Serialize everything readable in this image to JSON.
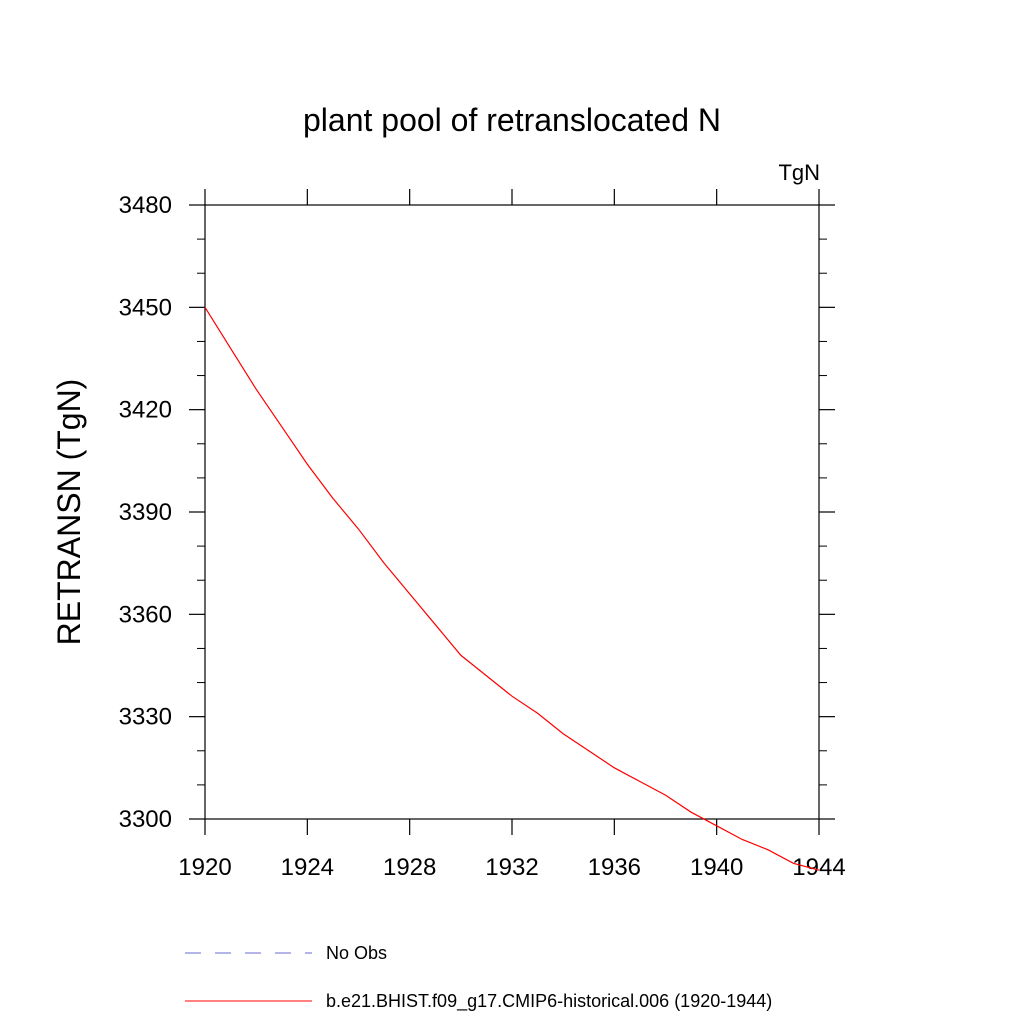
{
  "chart_data": {
    "type": "line",
    "title": "plant pool of retranslocated N",
    "units_label": "TgN",
    "ylabel": "RETRANSN  (TgN)",
    "xlabel": "",
    "xlim": [
      1920,
      1944
    ],
    "ylim": [
      3300,
      3480
    ],
    "x_ticks": [
      1920,
      1924,
      1928,
      1932,
      1936,
      1940,
      1944
    ],
    "y_ticks": [
      3300,
      3330,
      3360,
      3390,
      3420,
      3450,
      3480
    ],
    "x_minor_step": 1,
    "y_minor_step": 10,
    "grid": false,
    "legend_position": "bottom",
    "series": [
      {
        "name": "No Obs",
        "style": "dashed",
        "color": "#6a6ad0",
        "x": [],
        "y": []
      },
      {
        "name": "b.e21.BHIST.f09_g17.CMIP6-historical.006 (1920-1944)",
        "style": "solid",
        "color": "#ff0000",
        "x": [
          1920,
          1921,
          1922,
          1923,
          1924,
          1925,
          1926,
          1927,
          1928,
          1929,
          1930,
          1931,
          1932,
          1933,
          1934,
          1935,
          1936,
          1937,
          1938,
          1939,
          1940,
          1941,
          1942,
          1943,
          1944
        ],
        "y": [
          3450,
          3438,
          3426,
          3415,
          3404,
          3394,
          3385,
          3375,
          3366,
          3357,
          3348,
          3342,
          3336,
          3331,
          3325,
          3320,
          3315,
          3311,
          3307,
          3302,
          3298,
          3294,
          3291,
          3287,
          3285
        ]
      }
    ]
  }
}
